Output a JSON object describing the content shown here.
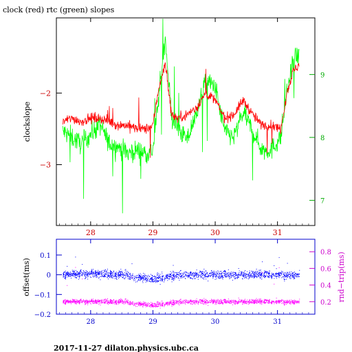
{
  "figure": {
    "title": "clock (red) rtc (green) slopes",
    "footer": "2017-11-27  dilaton.physics.ubc.ca"
  },
  "chart_data": [
    {
      "type": "line",
      "xlim": [
        27.45,
        31.6
      ],
      "ylim": [
        -3.85,
        -0.95
      ],
      "y2lim": [
        6.6,
        9.9
      ],
      "ylabel": "clockslope",
      "x_ticks": [
        28,
        29,
        30,
        31
      ],
      "x_tick_labels": [
        "28",
        "29",
        "30",
        "31"
      ],
      "y_ticks": [
        -3,
        -2
      ],
      "y_tick_labels": [
        "−3",
        "−2"
      ],
      "y2_ticks": [
        7,
        8,
        9
      ],
      "y2_tick_labels": [
        "7",
        "8",
        "9"
      ],
      "series": [
        {
          "name": "clock",
          "axis": "left",
          "color": "#ff0000",
          "x": [
            27.55,
            27.7,
            27.85,
            28.0,
            28.15,
            28.3,
            28.45,
            28.6,
            28.75,
            28.9,
            29.0,
            29.1,
            29.2,
            29.3,
            29.4,
            29.55,
            29.7,
            29.85,
            30.0,
            30.15,
            30.3,
            30.45,
            30.6,
            30.75,
            30.9,
            31.05,
            31.15,
            31.25,
            31.35
          ],
          "values": [
            -2.4,
            -2.35,
            -2.4,
            -2.35,
            -2.35,
            -2.4,
            -2.45,
            -2.45,
            -2.5,
            -2.5,
            -2.45,
            -1.9,
            -1.6,
            -2.3,
            -2.35,
            -2.3,
            -2.2,
            -2.0,
            -2.1,
            -2.35,
            -2.3,
            -2.1,
            -2.3,
            -2.45,
            -2.45,
            -2.5,
            -2.0,
            -1.7,
            -1.6
          ]
        },
        {
          "name": "rtc",
          "axis": "right",
          "color": "#00ff00",
          "x": [
            27.55,
            27.7,
            27.85,
            28.0,
            28.15,
            28.3,
            28.45,
            28.6,
            28.75,
            28.9,
            29.0,
            29.1,
            29.2,
            29.3,
            29.4,
            29.55,
            29.7,
            29.85,
            30.0,
            30.15,
            30.3,
            30.45,
            30.6,
            30.75,
            30.9,
            31.05,
            31.15,
            31.25,
            31.35
          ],
          "values": [
            8.1,
            8.0,
            7.9,
            8.05,
            8.2,
            7.9,
            7.85,
            7.75,
            7.8,
            7.75,
            7.8,
            8.7,
            9.6,
            8.3,
            8.15,
            7.95,
            8.4,
            8.9,
            8.8,
            8.1,
            8.0,
            8.4,
            8.1,
            7.8,
            7.8,
            8.0,
            8.7,
            9.2,
            9.3
          ]
        }
      ]
    },
    {
      "type": "scatter",
      "xlim": [
        27.45,
        31.6
      ],
      "ylim": [
        -0.2,
        0.18
      ],
      "y2lim": [
        0.05,
        0.95
      ],
      "ylabel": "offset(ms)",
      "y2label": "rnd−trip(ms)",
      "x_ticks": [
        28,
        29,
        30,
        31
      ],
      "x_tick_labels": [
        "28",
        "29",
        "30",
        "31"
      ],
      "y_ticks": [
        -0.2,
        -0.1,
        0,
        0.1
      ],
      "y_tick_labels": [
        "−0.2",
        "−0.1",
        "0",
        "0.1"
      ],
      "y2_ticks": [
        0.2,
        0.4,
        0.6,
        0.8
      ],
      "y2_tick_labels": [
        "0.2",
        "0.4",
        "0.6",
        "0.8"
      ],
      "series": [
        {
          "name": "offset",
          "axis": "left",
          "color": "#0000ff",
          "x": [
            27.55,
            28.0,
            28.5,
            28.8,
            29.0,
            29.5,
            30.0,
            30.5,
            31.0,
            31.35
          ],
          "values": [
            0.0,
            0.005,
            0.0,
            -0.015,
            -0.02,
            0.0,
            0.0,
            0.0,
            0.0,
            0.0
          ]
        },
        {
          "name": "rnd-trip",
          "axis": "right",
          "color": "#ff00ff",
          "x": [
            27.55,
            28.0,
            28.5,
            28.8,
            29.0,
            29.5,
            30.0,
            30.5,
            31.0,
            31.35
          ],
          "values": [
            0.2,
            0.2,
            0.2,
            0.17,
            0.16,
            0.2,
            0.2,
            0.2,
            0.2,
            0.2
          ]
        }
      ]
    }
  ]
}
